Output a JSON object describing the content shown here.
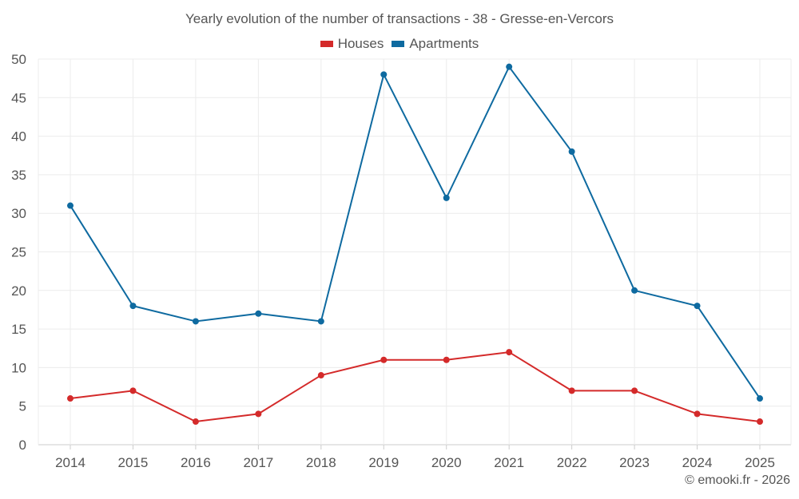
{
  "chart_data": {
    "type": "line",
    "title": "Yearly evolution of the number of transactions - 38 - Gresse-en-Vercors",
    "categories": [
      "2014",
      "2015",
      "2016",
      "2017",
      "2018",
      "2019",
      "2020",
      "2021",
      "2022",
      "2023",
      "2024",
      "2025"
    ],
    "series": [
      {
        "name": "Houses",
        "color": "#d42a2a",
        "values": [
          6,
          7,
          3,
          4,
          9,
          11,
          11,
          12,
          7,
          7,
          4,
          3
        ]
      },
      {
        "name": "Apartments",
        "color": "#0e6aa0",
        "values": [
          31,
          18,
          16,
          17,
          16,
          48,
          32,
          49,
          38,
          20,
          18,
          6
        ]
      }
    ],
    "ylim": [
      0,
      50
    ],
    "yticks": [
      "0",
      "5",
      "10",
      "15",
      "20",
      "25",
      "30",
      "35",
      "40",
      "45",
      "50"
    ],
    "grid": true,
    "legend": "top-center",
    "xlabel": "",
    "ylabel": ""
  },
  "credit": "© emooki.fr - 2026"
}
